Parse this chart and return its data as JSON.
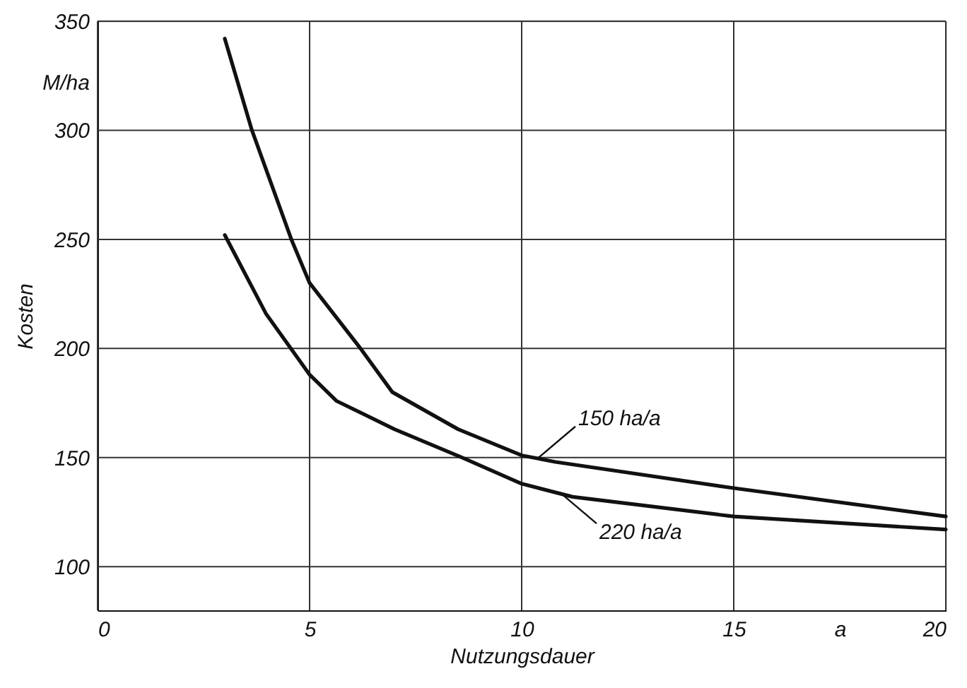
{
  "chart_data": {
    "type": "line",
    "xlabel": "Nutzungsdauer",
    "ylabel": "Kosten",
    "xlim": [
      0,
      20
    ],
    "ylim": [
      80,
      350
    ],
    "xticks": [
      0,
      5,
      10,
      15,
      {
        "value": 17.5,
        "label": "a"
      },
      20
    ],
    "yticks": [
      100,
      150,
      200,
      250,
      300,
      {
        "value": 322,
        "label": "M/ha"
      },
      350
    ],
    "grid": true,
    "line_style": "solid",
    "series": [
      {
        "color": "#111111",
        "x": [
          3,
          3.64,
          4.57,
          5,
          6.2,
          6.95,
          8.5,
          10,
          10.8,
          15,
          20
        ],
        "values": [
          342,
          300,
          250,
          230,
          200,
          180,
          163,
          151,
          148,
          136,
          123
        ]
      },
      {
        "color": "#111111",
        "x": [
          3,
          3.97,
          5,
          5.63,
          7,
          8.6,
          10,
          11.2,
          15,
          20
        ],
        "values": [
          252,
          216,
          188,
          176,
          163,
          150,
          138,
          132,
          123,
          117
        ]
      }
    ],
    "annotations": [
      {
        "text": "150 ha/a",
        "x": 10.4,
        "y": 150
      },
      {
        "text": "220 ha/a",
        "x": 10.9,
        "y": 134
      }
    ]
  }
}
